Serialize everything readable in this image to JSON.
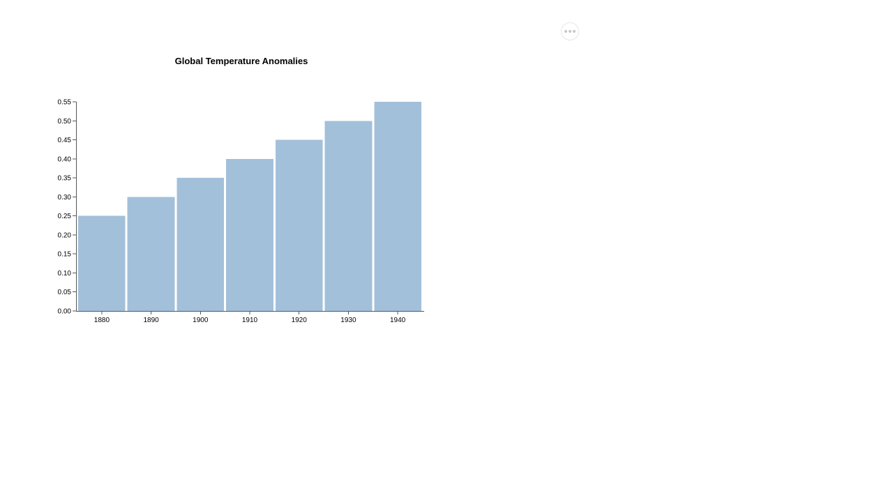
{
  "chart_data": {
    "type": "bar",
    "title": "Global Temperature Anomalies",
    "xlabel": "",
    "ylabel": "",
    "categories": [
      "1880",
      "1890",
      "1900",
      "1910",
      "1920",
      "1930",
      "1940"
    ],
    "values": [
      0.25,
      0.3,
      0.35,
      0.4,
      0.45,
      0.5,
      0.55
    ],
    "ylim": [
      0,
      0.55
    ],
    "yticks": [
      "0.00",
      "0.05",
      "0.10",
      "0.15",
      "0.20",
      "0.25",
      "0.30",
      "0.35",
      "0.40",
      "0.45",
      "0.50",
      "0.55"
    ],
    "bar_color": "#a3c0da",
    "grid": false,
    "legend": "none"
  },
  "toolbar": {
    "more_icon": "more-horizontal-icon"
  }
}
